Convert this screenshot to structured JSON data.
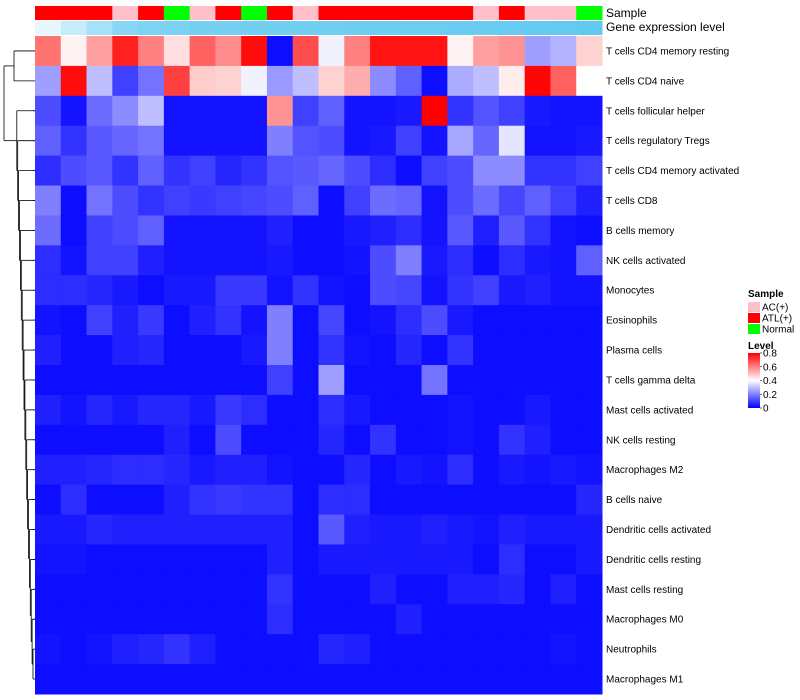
{
  "chart_data": {
    "type": "heatmap",
    "title": "",
    "annotations": {
      "sample_label": "Sample",
      "gene_expression_label": "Gene expression level",
      "sample_groups": [
        "ATL(+)",
        "ATL(+)",
        "ATL(+)",
        "AC(+)",
        "ATL(+)",
        "Normal",
        "AC(+)",
        "ATL(+)",
        "Normal",
        "ATL(+)",
        "AC(+)",
        "ATL(+)",
        "ATL(+)",
        "ATL(+)",
        "ATL(+)",
        "ATL(+)",
        "ATL(+)",
        "AC(+)",
        "ATL(+)",
        "AC(+)",
        "AC(+)",
        "Normal"
      ],
      "gene_expression_values": [
        0.15,
        0.35,
        0.55,
        0.75,
        0.8,
        0.82,
        0.85,
        0.86,
        0.87,
        0.88,
        0.88,
        0.89,
        0.9,
        0.9,
        0.91,
        0.91,
        0.92,
        0.93,
        0.94,
        0.95,
        0.96,
        0.98
      ]
    },
    "rows": [
      "T cells CD4 memory resting",
      "T cells CD4 naive",
      "T cells follicular helper",
      "T cells regulatory  Tregs",
      "T cells CD4 memory activated",
      "T cells CD8",
      "B cells memory",
      "NK cells activated",
      "Monocytes",
      "Eosinophils",
      "Plasma cells",
      "T cells gamma delta",
      "Mast cells activated",
      "NK cells resting",
      "Macrophages M2",
      "B cells naive",
      "Dendritic cells activated",
      "Dendritic cells resting",
      "Mast cells resting",
      "Macrophages M0",
      "Neutrophils",
      "Macrophages M1"
    ],
    "values": [
      [
        0.62,
        0.42,
        0.55,
        0.75,
        0.6,
        0.45,
        0.65,
        0.58,
        0.78,
        0.02,
        0.68,
        0.38,
        0.6,
        0.77,
        0.77,
        0.77,
        0.42,
        0.55,
        0.57,
        0.25,
        0.28,
        0.47
      ],
      [
        0.25,
        0.78,
        0.3,
        0.1,
        0.18,
        0.7,
        0.48,
        0.47,
        0.38,
        0.24,
        0.3,
        0.47,
        0.53,
        0.22,
        0.15,
        0.02,
        0.27,
        0.3,
        0.43,
        0.79,
        0.65,
        0.4
      ],
      [
        0.12,
        0.03,
        0.17,
        0.22,
        0.3,
        0.03,
        0.03,
        0.03,
        0.03,
        0.57,
        0.1,
        0.15,
        0.03,
        0.03,
        0.04,
        0.8,
        0.08,
        0.13,
        0.1,
        0.04,
        0.03,
        0.03
      ],
      [
        0.15,
        0.08,
        0.14,
        0.16,
        0.18,
        0.03,
        0.03,
        0.03,
        0.03,
        0.2,
        0.13,
        0.12,
        0.03,
        0.04,
        0.1,
        0.03,
        0.26,
        0.16,
        0.36,
        0.03,
        0.03,
        0.04
      ],
      [
        0.07,
        0.12,
        0.14,
        0.08,
        0.15,
        0.08,
        0.1,
        0.06,
        0.08,
        0.13,
        0.14,
        0.16,
        0.12,
        0.07,
        0.02,
        0.1,
        0.12,
        0.22,
        0.22,
        0.08,
        0.08,
        0.1
      ],
      [
        0.2,
        0.02,
        0.18,
        0.12,
        0.08,
        0.1,
        0.09,
        0.1,
        0.11,
        0.12,
        0.15,
        0.02,
        0.1,
        0.17,
        0.16,
        0.03,
        0.12,
        0.17,
        0.11,
        0.15,
        0.1,
        0.05
      ],
      [
        0.17,
        0.02,
        0.1,
        0.12,
        0.15,
        0.03,
        0.03,
        0.03,
        0.03,
        0.05,
        0.02,
        0.02,
        0.04,
        0.05,
        0.07,
        0.03,
        0.14,
        0.05,
        0.14,
        0.08,
        0.03,
        0.02
      ],
      [
        0.07,
        0.03,
        0.1,
        0.1,
        0.05,
        0.03,
        0.03,
        0.03,
        0.03,
        0.04,
        0.02,
        0.02,
        0.03,
        0.12,
        0.2,
        0.04,
        0.07,
        0.02,
        0.07,
        0.04,
        0.03,
        0.15
      ],
      [
        0.07,
        0.07,
        0.06,
        0.04,
        0.02,
        0.04,
        0.04,
        0.09,
        0.09,
        0.03,
        0.08,
        0.03,
        0.02,
        0.12,
        0.11,
        0.03,
        0.08,
        0.1,
        0.04,
        0.05,
        0.03,
        0.03
      ],
      [
        0.03,
        0.02,
        0.1,
        0.05,
        0.09,
        0.02,
        0.05,
        0.08,
        0.03,
        0.2,
        0.02,
        0.11,
        0.02,
        0.03,
        0.07,
        0.12,
        0.04,
        0.02,
        0.02,
        0.02,
        0.02,
        0.02
      ],
      [
        0.05,
        0.02,
        0.02,
        0.05,
        0.06,
        0.02,
        0.02,
        0.02,
        0.04,
        0.2,
        0.02,
        0.08,
        0.03,
        0.02,
        0.06,
        0.02,
        0.08,
        0.02,
        0.02,
        0.02,
        0.02,
        0.02
      ],
      [
        0.02,
        0.02,
        0.02,
        0.02,
        0.02,
        0.02,
        0.02,
        0.02,
        0.02,
        0.1,
        0.02,
        0.25,
        0.02,
        0.02,
        0.02,
        0.18,
        0.02,
        0.02,
        0.02,
        0.02,
        0.02,
        0.02
      ],
      [
        0.05,
        0.03,
        0.06,
        0.04,
        0.06,
        0.06,
        0.04,
        0.09,
        0.07,
        0.02,
        0.02,
        0.07,
        0.04,
        0.02,
        0.02,
        0.02,
        0.03,
        0.02,
        0.02,
        0.04,
        0.02,
        0.02
      ],
      [
        0.02,
        0.02,
        0.02,
        0.02,
        0.02,
        0.05,
        0.02,
        0.12,
        0.02,
        0.02,
        0.02,
        0.06,
        0.02,
        0.08,
        0.02,
        0.02,
        0.03,
        0.02,
        0.08,
        0.05,
        0.02,
        0.02
      ],
      [
        0.05,
        0.05,
        0.06,
        0.07,
        0.07,
        0.06,
        0.04,
        0.05,
        0.05,
        0.03,
        0.02,
        0.02,
        0.06,
        0.02,
        0.04,
        0.03,
        0.07,
        0.02,
        0.04,
        0.03,
        0.04,
        0.03
      ],
      [
        0.02,
        0.07,
        0.02,
        0.02,
        0.02,
        0.05,
        0.08,
        0.09,
        0.08,
        0.08,
        0.02,
        0.07,
        0.07,
        0.02,
        0.02,
        0.02,
        0.02,
        0.02,
        0.02,
        0.02,
        0.02,
        0.06
      ],
      [
        0.04,
        0.04,
        0.06,
        0.05,
        0.05,
        0.05,
        0.05,
        0.05,
        0.05,
        0.05,
        0.02,
        0.14,
        0.05,
        0.04,
        0.04,
        0.05,
        0.04,
        0.03,
        0.05,
        0.04,
        0.04,
        0.04
      ],
      [
        0.03,
        0.03,
        0.02,
        0.02,
        0.02,
        0.02,
        0.02,
        0.02,
        0.02,
        0.05,
        0.02,
        0.04,
        0.04,
        0.04,
        0.04,
        0.04,
        0.04,
        0.02,
        0.07,
        0.02,
        0.02,
        0.04
      ],
      [
        0.02,
        0.02,
        0.02,
        0.02,
        0.02,
        0.02,
        0.02,
        0.02,
        0.02,
        0.08,
        0.02,
        0.02,
        0.02,
        0.05,
        0.02,
        0.02,
        0.05,
        0.05,
        0.06,
        0.02,
        0.05,
        0.02
      ],
      [
        0.02,
        0.02,
        0.02,
        0.02,
        0.02,
        0.02,
        0.02,
        0.02,
        0.02,
        0.07,
        0.02,
        0.02,
        0.02,
        0.02,
        0.05,
        0.02,
        0.02,
        0.02,
        0.02,
        0.02,
        0.02,
        0.02
      ],
      [
        0.03,
        0.02,
        0.03,
        0.05,
        0.06,
        0.08,
        0.05,
        0.02,
        0.02,
        0.02,
        0.02,
        0.06,
        0.05,
        0.02,
        0.02,
        0.02,
        0.02,
        0.02,
        0.02,
        0.02,
        0.03,
        0.02
      ],
      [
        0.02,
        0.02,
        0.02,
        0.02,
        0.02,
        0.02,
        0.02,
        0.02,
        0.02,
        0.02,
        0.02,
        0.02,
        0.02,
        0.02,
        0.02,
        0.02,
        0.02,
        0.02,
        0.02,
        0.02,
        0.02,
        0.02
      ]
    ],
    "legend": {
      "sample_title": "Sample",
      "sample_entries": [
        {
          "label": "AC(+)",
          "color": "#ffc0cb"
        },
        {
          "label": "ATL(+)",
          "color": "#ff0000"
        },
        {
          "label": "Normal",
          "color": "#00ff00"
        }
      ],
      "level_title": "Level",
      "level_ticks": [
        "0.8",
        "0.6",
        "0.4",
        "0.2",
        "0"
      ],
      "level_tick_values": [
        0.8,
        0.6,
        0.4,
        0.2,
        0
      ],
      "level_range": [
        0,
        0.8
      ]
    },
    "colors": {
      "low": "#0000ff",
      "mid": "#ffffff",
      "high": "#ff0000",
      "gene_low": "#ffffff",
      "gene_high": "#5ec8f0"
    }
  }
}
